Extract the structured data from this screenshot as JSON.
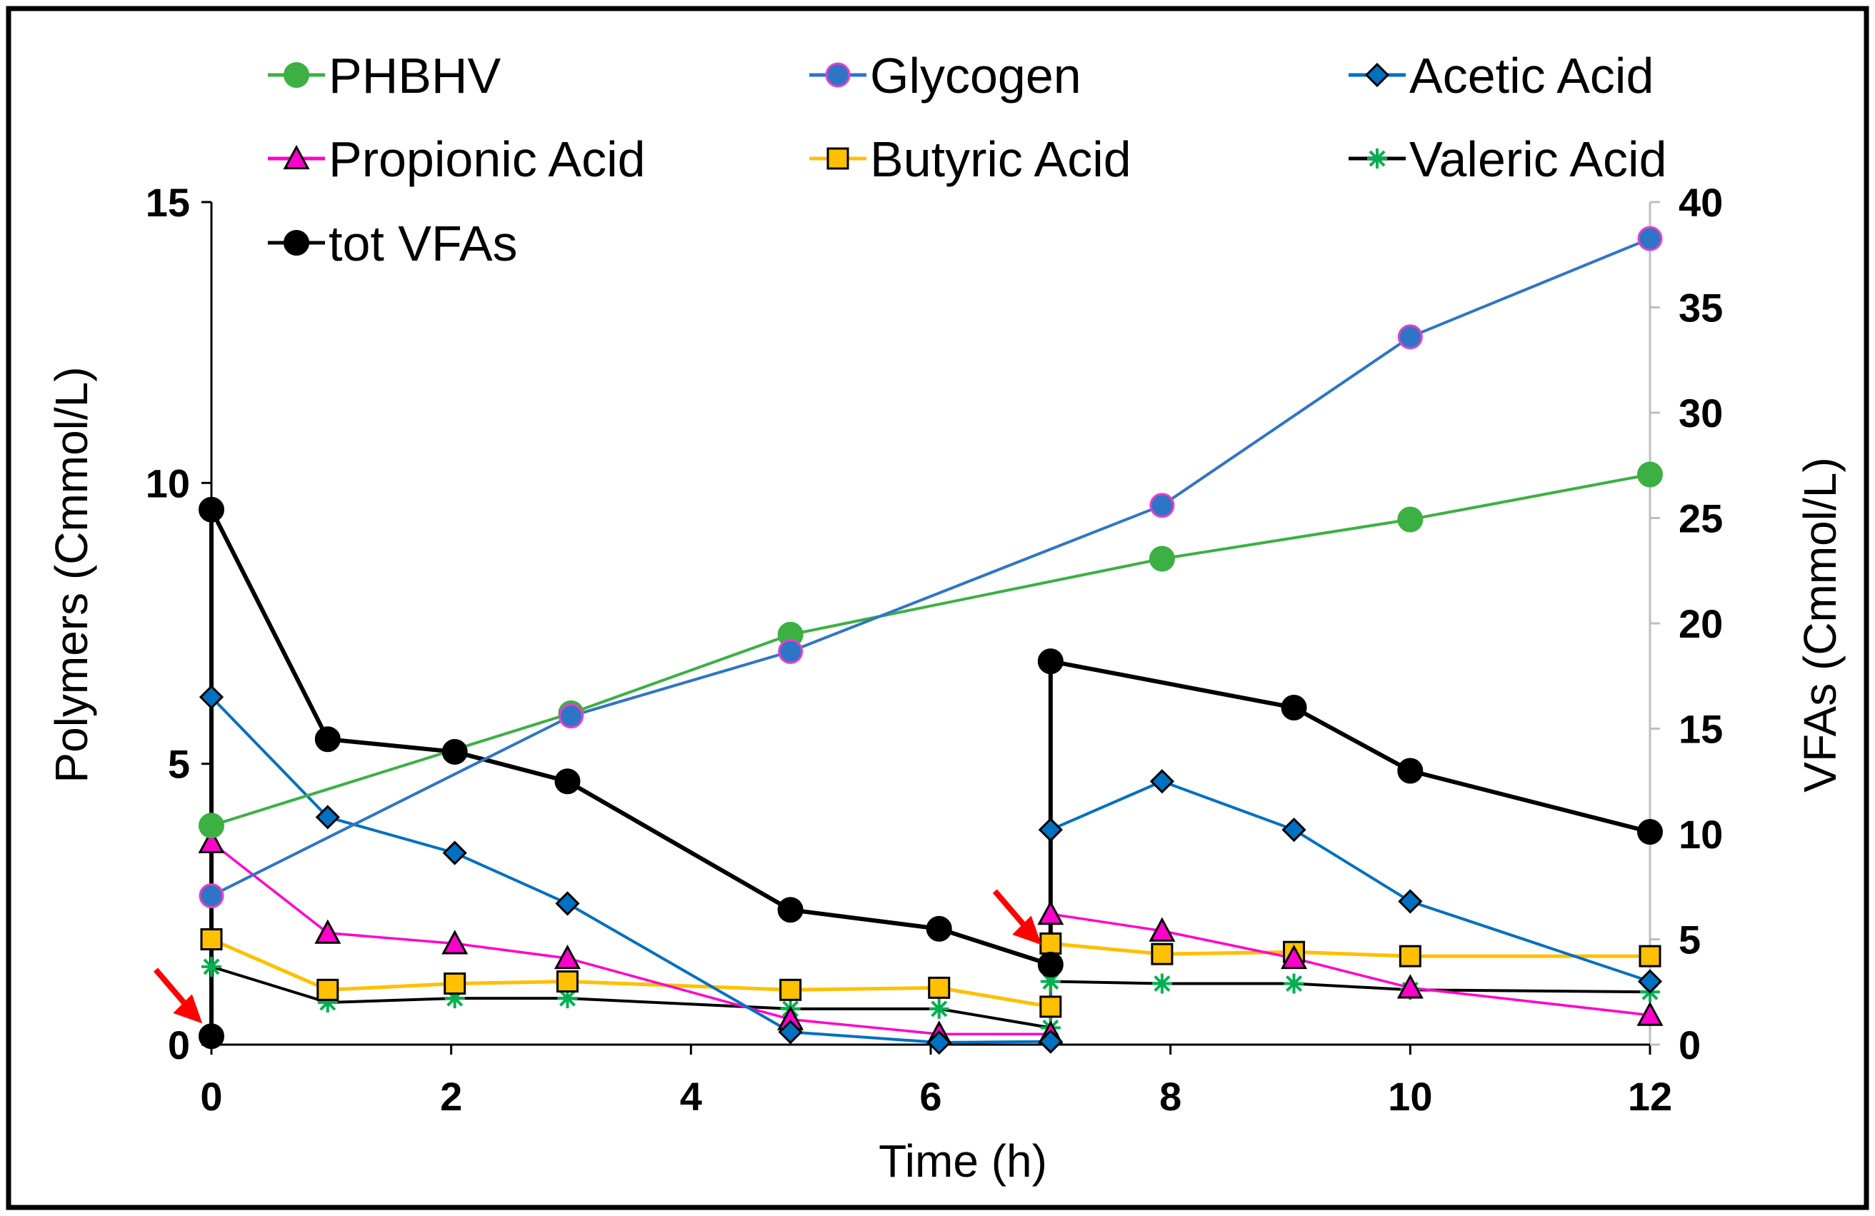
{
  "chart_data": {
    "type": "line",
    "xlabel": "Time (h)",
    "ylabel_left": "Polymers (Cmmol/L)",
    "ylabel_right": "VFAs (Cmmol/L)",
    "xlim": [
      0,
      12
    ],
    "ylim_left": [
      0,
      15
    ],
    "ylim_right": [
      0,
      40
    ],
    "x_ticks": [
      "0",
      "2",
      "4",
      "6",
      "8",
      "10",
      "12"
    ],
    "y_left_ticks": [
      "0",
      "5",
      "10",
      "15"
    ],
    "y_right_ticks": [
      "0",
      "5",
      "10",
      "15",
      "20",
      "25",
      "30",
      "35",
      "40"
    ],
    "legend_position": "top",
    "feeding_arrows_at_x": [
      0,
      7
    ],
    "series": [
      {
        "name": "PHBHV",
        "axis": "left",
        "color": "#3CB043",
        "marker": "circle",
        "x": [
          0,
          3,
          4.83,
          7.93,
          10,
          12
        ],
        "y": [
          3.9,
          5.9,
          7.3,
          8.65,
          9.35,
          10.15
        ]
      },
      {
        "name": "Glycogen",
        "axis": "left",
        "color": "#2E75C6",
        "marker": "circle-pink",
        "x": [
          0,
          3,
          4.83,
          7.93,
          10,
          12
        ],
        "y": [
          2.65,
          5.85,
          7.0,
          9.6,
          12.6,
          14.35
        ]
      },
      {
        "name": "Acetic Acid",
        "axis": "right",
        "color": "#0070C0",
        "marker": "diamond",
        "x": [
          0,
          0.97,
          2.03,
          2.97,
          4.83,
          6.07,
          7,
          7,
          7.93,
          9.03,
          10,
          12
        ],
        "y": [
          16.5,
          10.8,
          9.1,
          6.7,
          0.6,
          0.1,
          0.15,
          10.2,
          12.5,
          10.2,
          6.8,
          3.0
        ]
      },
      {
        "name": "Propionic Acid",
        "axis": "right",
        "color": "#FF00CC",
        "marker": "triangle",
        "x": [
          0,
          0.97,
          2.03,
          2.97,
          4.83,
          6.07,
          7,
          7,
          7.93,
          9.03,
          10,
          12
        ],
        "y": [
          9.6,
          5.3,
          4.8,
          4.1,
          1.2,
          0.5,
          0.5,
          6.2,
          5.4,
          4.1,
          2.7,
          1.4
        ]
      },
      {
        "name": "Butyric Acid",
        "axis": "right",
        "color": "#FFC000",
        "marker": "square",
        "x": [
          0,
          0.97,
          2.03,
          2.97,
          4.83,
          6.07,
          7,
          7,
          7.93,
          9.03,
          10,
          12
        ],
        "y": [
          5.0,
          2.6,
          2.9,
          3.0,
          2.6,
          2.7,
          1.8,
          4.8,
          4.3,
          4.4,
          4.2,
          4.2
        ]
      },
      {
        "name": "Valeric Acid",
        "axis": "right",
        "color": "#00B050",
        "marker": "star",
        "x": [
          0,
          0.97,
          2.03,
          2.97,
          4.83,
          6.07,
          7,
          7,
          7.93,
          9.03,
          10,
          12
        ],
        "y": [
          3.7,
          2.0,
          2.2,
          2.2,
          1.7,
          1.7,
          0.8,
          3.0,
          2.9,
          2.9,
          2.6,
          2.5
        ]
      },
      {
        "name": "tot VFAs",
        "axis": "right",
        "color": "#000000",
        "marker": "circle-black",
        "x": [
          0,
          0,
          0.97,
          2.03,
          2.97,
          4.83,
          6.07,
          7,
          7,
          7.93,
          9.03,
          10,
          12
        ],
        "y": [
          0.4,
          25.4,
          14.5,
          13.9,
          12.5,
          6.4,
          5.5,
          3.8,
          18.2,
          null,
          16.0,
          13.0,
          10.1
        ]
      }
    ],
    "series_draw_order": [
      "Valeric Acid",
      "Butyric Acid",
      "Propionic Acid",
      "Acetic Acid",
      "tot VFAs",
      "PHBHV",
      "Glycogen"
    ]
  }
}
